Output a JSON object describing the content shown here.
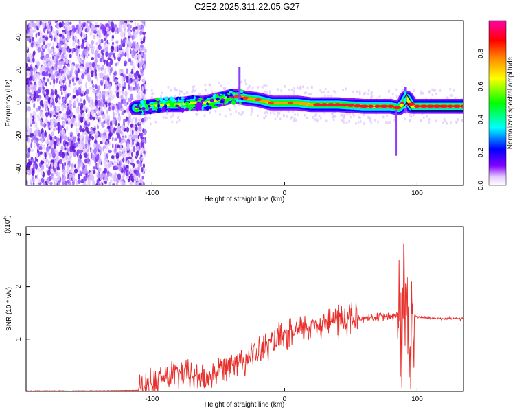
{
  "chart_data": [
    {
      "type": "heatmap",
      "title": "C2E2.2025.311.22.05.G27",
      "xlabel": "Height of straight line (km)",
      "ylabel": "Frequency (Hz)",
      "xlim": [
        -195,
        135
      ],
      "ylim": [
        -50,
        50
      ],
      "xticks": [
        -100,
        0,
        100
      ],
      "yticks": [
        -40,
        -20,
        0,
        20,
        40
      ],
      "colorbar": {
        "label": "Normalized spectral amplitude",
        "range": [
          0,
          1
        ],
        "ticks": [
          "0.0",
          "0.2",
          "0.4",
          "0.6",
          "0.8"
        ],
        "colors": [
          "#ffffff",
          "#d9b3ff",
          "#8000ff",
          "#0000ff",
          "#00ffff",
          "#00ff00",
          "#ffff00",
          "#ff8000",
          "#ff0000",
          "#ff00ff"
        ]
      },
      "ridge": {
        "x": [
          -112,
          -100,
          -90,
          -80,
          -70,
          -60,
          -50,
          -40,
          -35,
          -30,
          -20,
          -10,
          0,
          10,
          20,
          40,
          60,
          80,
          86,
          90,
          92,
          96,
          110,
          135
        ],
        "y": [
          -3,
          -2,
          -1,
          -1,
          0,
          0,
          2,
          4,
          4,
          3,
          2,
          0,
          0,
          0,
          -1,
          -1,
          -2,
          -2,
          -3,
          0,
          3,
          -2,
          -2,
          -2
        ]
      }
    },
    {
      "type": "line",
      "xlabel": "Height of straight line (km)",
      "ylabel": "SNR (10 * v/v)",
      "scale_label": "(x10",
      "scale_exp": "4",
      "xlim": [
        -195,
        135
      ],
      "ylim": [
        0,
        3.15
      ],
      "xticks": [
        -100,
        0,
        100
      ],
      "yticks": [
        1,
        2,
        3
      ],
      "color": "#e8302c",
      "envelope": {
        "x": [
          -195,
          -150,
          -110,
          -100,
          -90,
          -80,
          -70,
          -60,
          -50,
          -40,
          -30,
          -20,
          -10,
          0,
          10,
          20,
          30,
          40,
          50,
          60,
          70,
          80,
          85,
          88,
          90,
          92,
          95,
          97,
          100,
          110,
          120,
          135
        ],
        "y": [
          0.01,
          0.01,
          0.02,
          0.15,
          0.28,
          0.35,
          0.3,
          0.25,
          0.38,
          0.6,
          0.62,
          0.75,
          0.92,
          1.05,
          1.15,
          1.25,
          1.32,
          1.38,
          1.38,
          1.4,
          1.42,
          1.42,
          1.45,
          1.1,
          1.5,
          1.45,
          1.2,
          1.5,
          1.42,
          1.4,
          1.39,
          1.39
        ]
      }
    }
  ]
}
